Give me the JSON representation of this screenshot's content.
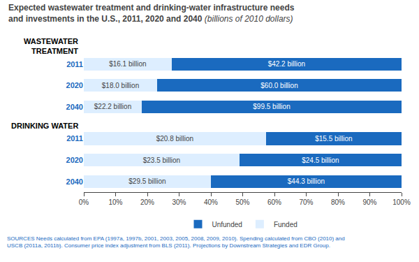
{
  "chart_data": {
    "type": "bar",
    "orientation": "horizontal",
    "stacked": true,
    "title": "Expected wastewater treatment and drinking-water infrastructure needs\nand investments in the U.S., 2011, 2020 and 2040",
    "subtitle": "(billions of 2010 dollars)",
    "categories": [
      "2011",
      "2020",
      "2040",
      "2011",
      "2020",
      "2040"
    ],
    "annotations": [
      "WASTEWATER\nTREATMENT",
      "DRINKING WATER"
    ],
    "series": [
      {
        "name": "Funded",
        "color": "#ddeeff",
        "values": [
          27.615780446,
          23.0769230769,
          18.24157765,
          57.30027548,
          48.9583333333,
          39.97289973
        ],
        "labels": [
          "$16.1 billion",
          "$18.0 billion",
          "$22.2 billion",
          "$20.8 billion",
          "$23.5 billion",
          "$29.5 billion"
        ]
      },
      {
        "name": "Unfunded",
        "color": "#1a6abf",
        "values": [
          72.384219554,
          76.9230769231,
          81.75842235,
          42.69972452,
          51.0416666667,
          60.02710027
        ],
        "labels": [
          "$42.2 billion",
          "$60.0 billion",
          "$99.5 billion",
          "$15.5 billion",
          "$24.5 billion",
          "$44.3 billion"
        ]
      }
    ],
    "xlim": [
      0,
      100
    ],
    "xticks": [
      {
        "value": 0,
        "label": "0%"
      },
      {
        "value": 10,
        "label": "10%"
      },
      {
        "value": 20,
        "label": "20%"
      },
      {
        "value": 30,
        "label": "30%"
      },
      {
        "value": 40,
        "label": "40%"
      },
      {
        "value": 50,
        "label": "50%"
      },
      {
        "value": 60,
        "label": "60%"
      },
      {
        "value": 70,
        "label": "70%"
      },
      {
        "value": 80,
        "label": "80%"
      },
      {
        "value": 90,
        "label": "90%"
      },
      {
        "value": 100,
        "label": "100%"
      }
    ],
    "grid": false,
    "legend": "bottom",
    "source": "SOURCES Needs calculated from EPA (1997a, 1997b, 2001, 2003, 2005, 2008, 2009, 2010). Spending calculated from CBO (2010) and\nUSCB (2011a, 2011b). Consumer price index adjustment from BLS (2011). Projections by Downstream Strategies and EDR Group."
  }
}
